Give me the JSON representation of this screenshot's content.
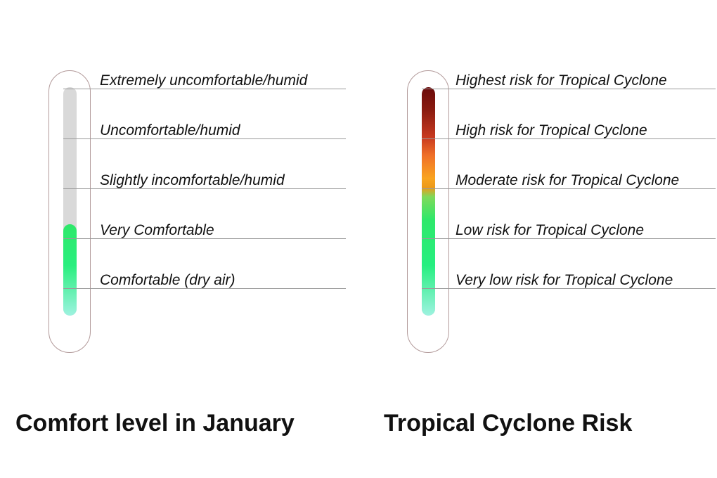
{
  "gauges": [
    {
      "title": "Comfort level in January",
      "levels": [
        "Extremely uncomfortable/humid",
        "Uncomfortable/humid",
        "Slightly incomfortable/humid",
        "Very Comfortable",
        "Comfortable (dry air)"
      ],
      "fill_fraction": 0.4,
      "colors": {
        "track": "#d9d9d9",
        "fill_top": "#2ee86a",
        "fill_bottom": "#9ef2e0",
        "outline": "#b29a9a"
      }
    },
    {
      "title": "Tropical Cyclone Risk",
      "levels": [
        "Highest risk for Tropical Cyclone",
        "High risk for Tropical Cyclone",
        "Moderate risk for Tropical Cyclone",
        "Low risk for Tropical Cyclone",
        "Very low risk for Tropical Cyclone"
      ],
      "fill_fraction": 1.0,
      "colors": {
        "fill_top": "#6b0a0a",
        "fill_middle": "#f9a41f",
        "fill_bottom": "#9ef2e0",
        "outline": "#b29a9a"
      }
    }
  ]
}
